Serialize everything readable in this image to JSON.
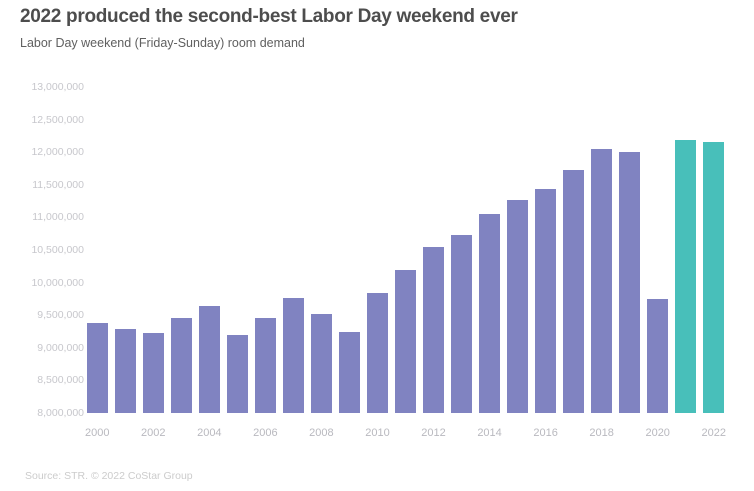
{
  "header": {
    "title": "2022 produced the second-best Labor Day weekend ever",
    "subtitle": "Labor Day weekend (Friday-Sunday) room demand"
  },
  "footer": {
    "source": "Source: STR. © 2022 CoStar Group"
  },
  "colors": {
    "bar_default": "#8083c1",
    "bar_highlight": "#48bfba",
    "title_text": "#4d4d4d",
    "subtitle_text": "#606060",
    "axis_text": "#c7c7cc",
    "x_axis_text": "#b9b9bf",
    "source_text": "#cccccc"
  },
  "chart_data": {
    "type": "bar",
    "title": "2022 produced the second-best Labor Day weekend ever",
    "subtitle": "Labor Day weekend (Friday-Sunday) room demand",
    "xlabel": "",
    "ylabel": "",
    "categories": [
      2000,
      2001,
      2002,
      2003,
      2004,
      2005,
      2006,
      2007,
      2008,
      2009,
      2010,
      2011,
      2012,
      2013,
      2014,
      2015,
      2016,
      2017,
      2018,
      2019,
      2020,
      2021,
      2022
    ],
    "values": [
      9380000,
      9290000,
      9220000,
      9450000,
      9640000,
      9190000,
      9460000,
      9770000,
      9520000,
      9250000,
      9840000,
      10190000,
      10540000,
      10730000,
      11050000,
      11270000,
      11440000,
      11720000,
      12050000,
      12000000,
      9750000,
      12190000,
      12150000
    ],
    "highlighted_categories": [
      2021,
      2022
    ],
    "highlight_note": "2021 and 2022 bars shown in teal; all other years purple",
    "ylim": [
      8000000,
      13000000
    ],
    "y_tick_step": 500000,
    "y_tick_labels": [
      "13,000,000",
      "12,500,000",
      "12,000,000",
      "11,500,000",
      "11,000,000",
      "10,500,000",
      "10,000,000",
      "9,500,000",
      "9,000,000",
      "8,500,000",
      "8,000,000"
    ],
    "x_tick_labels": [
      "2000",
      "2002",
      "2004",
      "2006",
      "2008",
      "2010",
      "2012",
      "2014",
      "2016",
      "2018",
      "2020",
      "2022"
    ],
    "grid": false,
    "legend": false,
    "source": "Source: STR. © 2022 CoStar Group"
  }
}
